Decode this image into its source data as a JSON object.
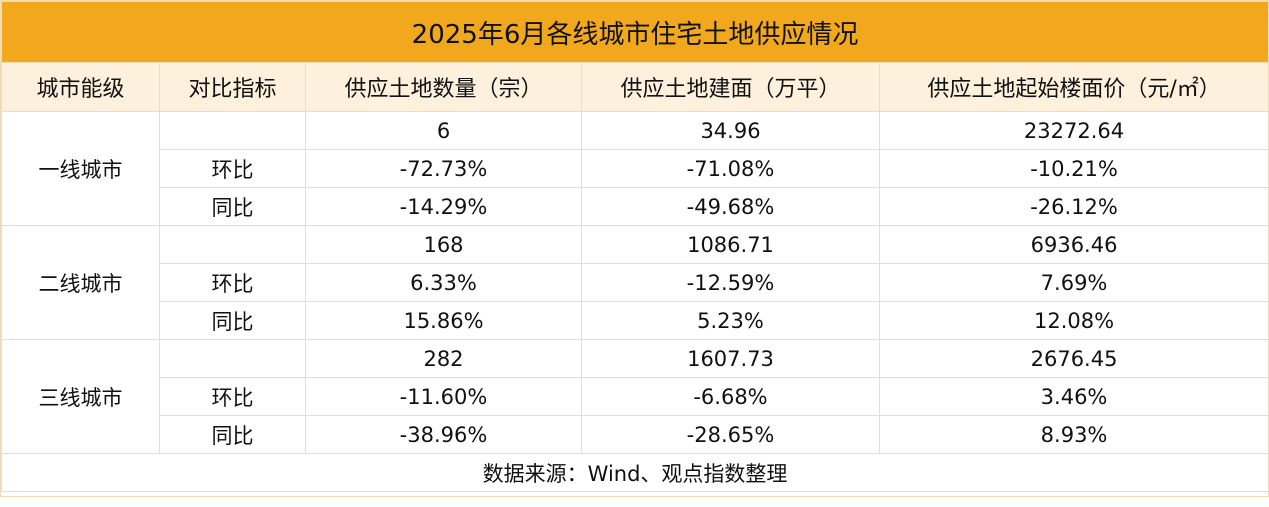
{
  "title": "2025年6月各线城市住宅土地供应情况",
  "header": [
    "城市能级",
    "对比指标",
    "供应土地数量（宗）",
    "供应土地建面（万平）",
    "供应土地起始楼面价（元/㎡）"
  ],
  "groups": [
    {
      "tier": "一线城市",
      "rows": [
        {
          "values": [
            "6",
            "34.96",
            "23272.64"
          ]
        },
        {
          "metric": "环比",
          "values": [
            "-72.73%",
            "-71.08%",
            "-10.21%"
          ]
        },
        {
          "metric": "同比",
          "values": [
            "-14.29%",
            "-49.68%",
            "-26.12%"
          ]
        }
      ]
    },
    {
      "tier": "二线城市",
      "rows": [
        {
          "values": [
            "168",
            "1086.71",
            "6936.46"
          ]
        },
        {
          "metric": "环比",
          "values": [
            "6.33%",
            "-12.59%",
            "7.69%"
          ]
        },
        {
          "metric": "同比",
          "values": [
            "15.86%",
            "5.23%",
            "12.08%"
          ]
        }
      ]
    },
    {
      "tier": "三线城市",
      "rows": [
        {
          "values": [
            "282",
            "1607.73",
            "2676.45"
          ]
        },
        {
          "metric": "环比",
          "values": [
            "-11.60%",
            "-6.68%",
            "3.46%"
          ]
        },
        {
          "metric": "同比",
          "values": [
            "-38.96%",
            "-28.65%",
            "8.93%"
          ]
        }
      ]
    }
  ],
  "source": "数据来源：Wind、观点指数整理"
}
